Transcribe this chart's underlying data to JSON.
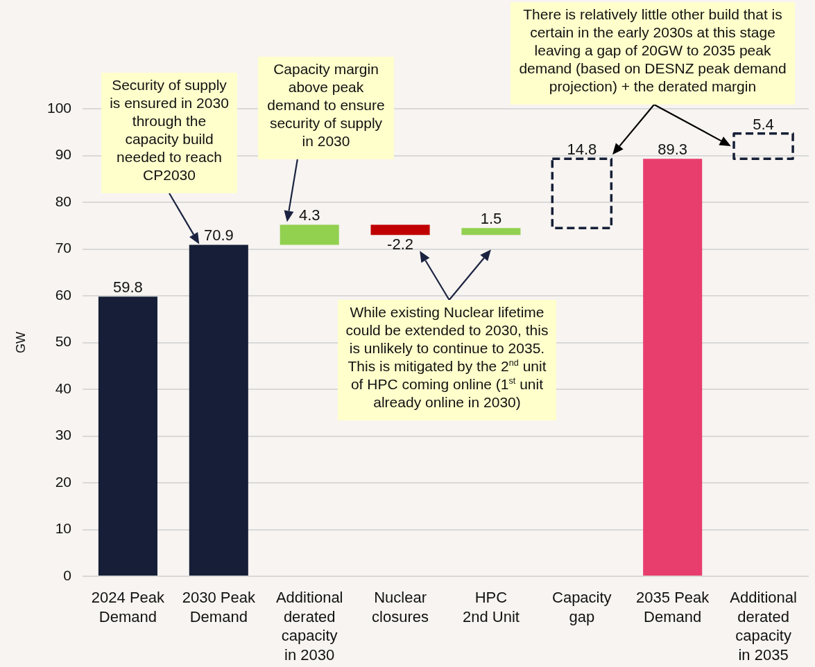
{
  "chart_data": {
    "type": "bar",
    "categories": [
      "2024 Peak\nDemand",
      "2030 Peak\nDemand",
      "Additional\nderated\ncapacity\nin 2030",
      "Nuclear\nclosures",
      "HPC\n2nd Unit",
      "Capacity\ngap",
      "2035 Peak\nDemand",
      "Additional\nderated\ncapacity\nin 2035"
    ],
    "series": [
      {
        "values": [
          59.8,
          70.9,
          4.3,
          -2.2,
          1.5,
          null,
          89.3,
          null
        ],
        "base": [
          null,
          null,
          70.9,
          75.2,
          73,
          null,
          null,
          null
        ],
        "colors": [
          "#161f37",
          "#161f37",
          "#92d050",
          "#c00000",
          "#92d050",
          null,
          "#e83e6e",
          null
        ]
      },
      {
        "values": [
          null,
          null,
          null,
          null,
          null,
          14.8,
          null,
          5.4
        ],
        "base": [
          null,
          null,
          null,
          null,
          null,
          74.5,
          null,
          89.3
        ],
        "color": "#161f37",
        "line_style": "dashed"
      }
    ],
    "ylabel": "GW",
    "ylim": [
      0,
      100
    ],
    "yticks": [
      0,
      10,
      20,
      30,
      40,
      50,
      60,
      70,
      80,
      90,
      100
    ],
    "grid": "y",
    "data_labels": true,
    "annotations": [
      "Security of supply\nis ensured in 2030\nthrough the\ncapacity build\nneeded to reach\nCP2030",
      "Capacity margin\nabove peak\ndemand to ensure\nsecurity of supply\nin 2030",
      "While existing Nuclear lifetime\ncould be extended to 2030, this\nis unlikely to continue to 2035.\nThis is mitigated by the 2$^{nd}$ unit\nof HPC coming online (1$^{st}$ unit\nalready online in 2030)",
      "There is relatively little other build that is\ncertain in the early 2030s at this stage\nleaving a gap of 20GW to 2035 peak\ndemand (based on DESNZ peak demand\nprojection) + the derated margin"
    ]
  }
}
